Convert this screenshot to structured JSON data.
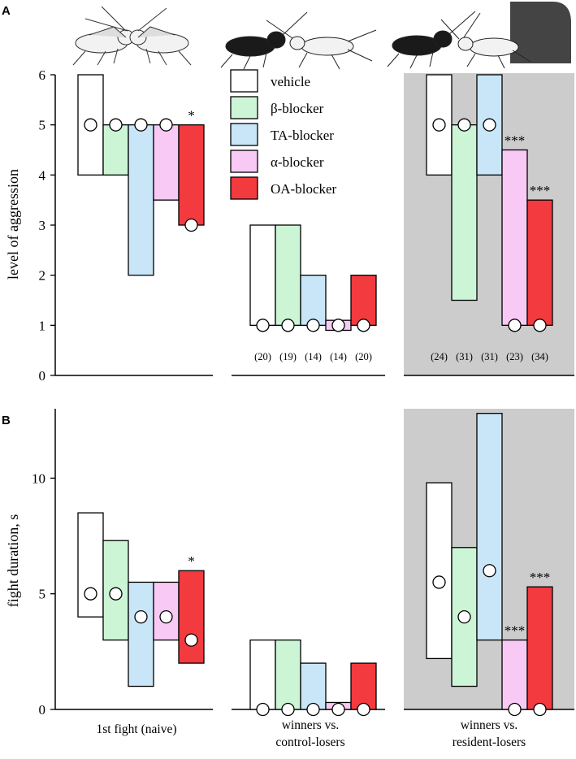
{
  "colors": {
    "vehicle": "#ffffff",
    "beta": "#ccf5d6",
    "ta": "#c9e6f8",
    "alpha": "#f8c9f5",
    "oa": "#f23a3f",
    "shade": "#cccccc",
    "dark": "#444444"
  },
  "illustrations": {
    "left": "cricket-pair-icon",
    "middle": "cricket-dominant-pair-icon",
    "right": "cricket-shelter-pair-icon"
  },
  "legend": [
    {
      "label": "vehicle",
      "color": "#ffffff"
    },
    {
      "label": "β-blocker",
      "color": "#ccf5d6"
    },
    {
      "label": "TA-blocker",
      "color": "#c9e6f8"
    },
    {
      "label": "α-blocker",
      "color": "#f8c9f5"
    },
    {
      "label": "OA-blocker",
      "color": "#f23a3f"
    }
  ],
  "group_labels": {
    "g1": "1st  fight  (naive)",
    "g2_line1": "winners  vs.",
    "g2_line2": "control-losers",
    "g3_line1": "winners  vs.",
    "g3_line2": "resident-losers"
  },
  "chart_data": [
    {
      "panel": "A",
      "type": "bar",
      "ylabel": "level  of  aggression",
      "xlabel": "",
      "ylim": [
        0,
        6
      ],
      "yticks": [
        0,
        1,
        2,
        3,
        4,
        5,
        6
      ],
      "grid": false,
      "legend_position": "top-center",
      "groups": [
        {
          "name": "1st fight (naive)",
          "shaded": false,
          "n_labels": [],
          "bars": [
            {
              "series": "vehicle",
              "low": 4,
              "high": 6,
              "median": 5
            },
            {
              "series": "β-blocker",
              "low": 4,
              "high": 5,
              "median": 5
            },
            {
              "series": "TA-blocker",
              "low": 2,
              "high": 5,
              "median": 5
            },
            {
              "series": "α-blocker",
              "low": 3.5,
              "high": 5,
              "median": 5
            },
            {
              "series": "OA-blocker",
              "low": 3,
              "high": 5,
              "median": 3,
              "sig": "*"
            }
          ]
        },
        {
          "name": "winners vs. control-losers",
          "shaded": false,
          "n_labels": [
            "(20)",
            "(19)",
            "(14)",
            "(14)",
            "(20)"
          ],
          "bars": [
            {
              "series": "vehicle",
              "low": 1,
              "high": 3,
              "median": 1
            },
            {
              "series": "β-blocker",
              "low": 1,
              "high": 3,
              "median": 1
            },
            {
              "series": "TA-blocker",
              "low": 1,
              "high": 2,
              "median": 1
            },
            {
              "series": "α-blocker",
              "low": 0.9,
              "high": 1.1,
              "median": 1
            },
            {
              "series": "OA-blocker",
              "low": 1,
              "high": 2,
              "median": 1
            }
          ]
        },
        {
          "name": "winners vs. resident-losers",
          "shaded": true,
          "n_labels": [
            "(24)",
            "(31)",
            "(31)",
            "(23)",
            "(34)"
          ],
          "bars": [
            {
              "series": "vehicle",
              "low": 4,
              "high": 6,
              "median": 5
            },
            {
              "series": "β-blocker",
              "low": 1.5,
              "high": 5,
              "median": 5
            },
            {
              "series": "TA-blocker",
              "low": 4,
              "high": 6,
              "median": 5
            },
            {
              "series": "α-blocker",
              "low": 1,
              "high": 4.5,
              "median": 1,
              "sig": "***"
            },
            {
              "series": "OA-blocker",
              "low": 1,
              "high": 3.5,
              "median": 1,
              "sig": "***"
            }
          ]
        }
      ]
    },
    {
      "panel": "B",
      "type": "bar",
      "ylabel": "fight  duration,  s",
      "xlabel": "",
      "ylim": [
        0,
        13
      ],
      "yticks": [
        0,
        5,
        10
      ],
      "grid": false,
      "groups": [
        {
          "name": "1st fight (naive)",
          "shaded": false,
          "bars": [
            {
              "series": "vehicle",
              "low": 4,
              "high": 8.5,
              "median": 5
            },
            {
              "series": "β-blocker",
              "low": 3,
              "high": 7.3,
              "median": 5
            },
            {
              "series": "TA-blocker",
              "low": 1,
              "high": 5.5,
              "median": 4
            },
            {
              "series": "α-blocker",
              "low": 3,
              "high": 5.5,
              "median": 4
            },
            {
              "series": "OA-blocker",
              "low": 2,
              "high": 6,
              "median": 3,
              "sig": "*"
            }
          ]
        },
        {
          "name": "winners vs. control-losers",
          "shaded": false,
          "bars": [
            {
              "series": "vehicle",
              "low": 0,
              "high": 3,
              "median": 0
            },
            {
              "series": "β-blocker",
              "low": 0,
              "high": 3,
              "median": 0
            },
            {
              "series": "TA-blocker",
              "low": 0,
              "high": 2,
              "median": 0
            },
            {
              "series": "α-blocker",
              "low": 0,
              "high": 0.3,
              "median": 0
            },
            {
              "series": "OA-blocker",
              "low": 0,
              "high": 2,
              "median": 0
            }
          ]
        },
        {
          "name": "winners vs. resident-losers",
          "shaded": true,
          "bars": [
            {
              "series": "vehicle",
              "low": 2.2,
              "high": 9.8,
              "median": 5.5
            },
            {
              "series": "β-blocker",
              "low": 1,
              "high": 7,
              "median": 4
            },
            {
              "series": "TA-blocker",
              "low": 3,
              "high": 12.8,
              "median": 6
            },
            {
              "series": "α-blocker",
              "low": 0,
              "high": 3,
              "median": 0,
              "sig": "***"
            },
            {
              "series": "OA-blocker",
              "low": 0,
              "high": 5.3,
              "median": 0,
              "sig": "***"
            }
          ]
        }
      ]
    }
  ]
}
